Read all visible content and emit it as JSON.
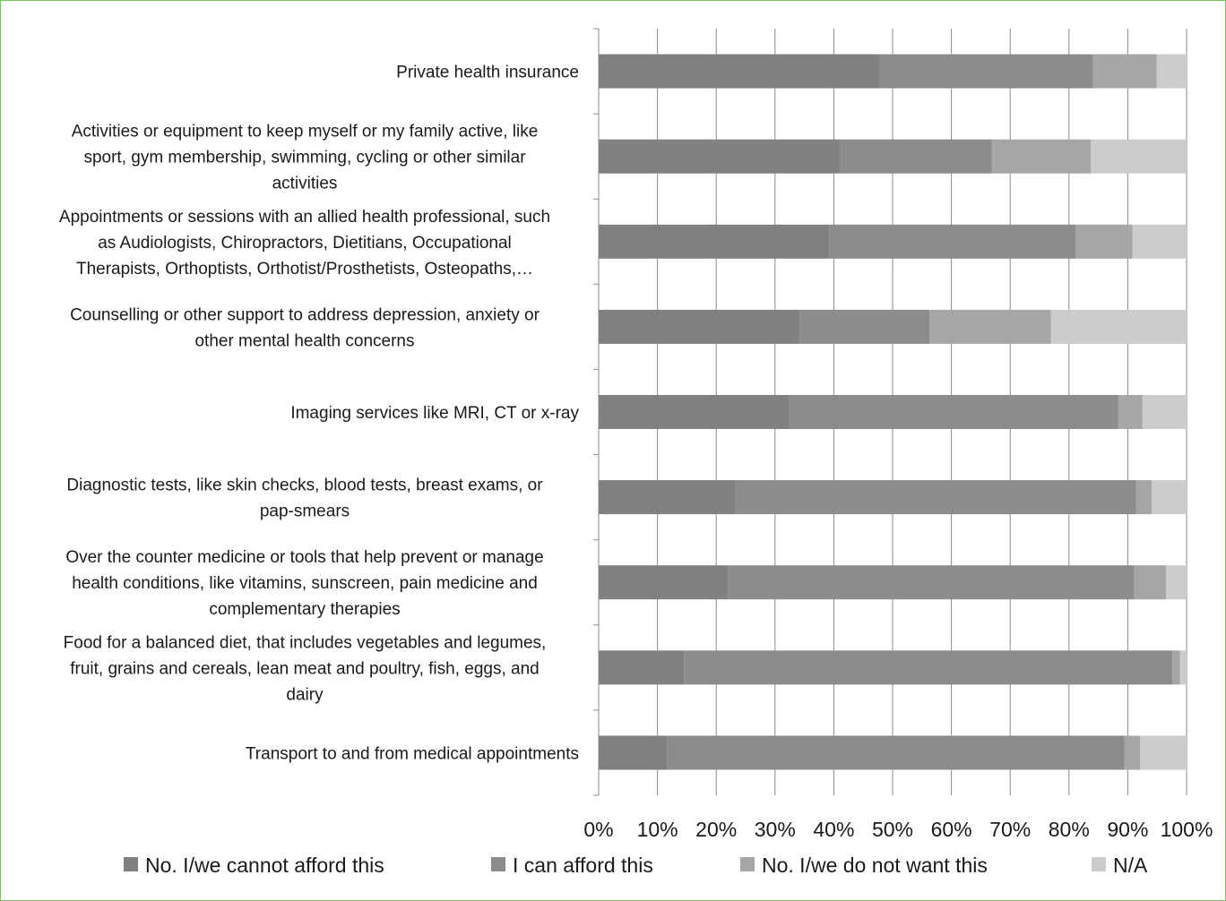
{
  "chart_data": {
    "type": "bar",
    "orientation": "horizontal",
    "stacked": "percent",
    "title": "",
    "xlabel": "",
    "ylabel": "",
    "xlim": [
      0,
      100
    ],
    "x_ticks": [
      "0%",
      "10%",
      "20%",
      "30%",
      "40%",
      "50%",
      "60%",
      "70%",
      "80%",
      "90%",
      "100%"
    ],
    "grid": "vertical",
    "legend_position": "bottom",
    "categories": [
      "Private health insurance",
      "Activities or equipment to keep myself or my family active, like sport, gym membership, swimming, cycling or other similar activities",
      "Appointments or sessions with an allied health professional, such as Audiologists, Chiropractors, Dietitians, Occupational Therapists, Orthoptists, Orthotist/Prosthetists, Osteopaths,…",
      "Counselling or other support to address depression, anxiety or other mental health concerns",
      "Imaging services like MRI, CT or x-ray",
      "Diagnostic tests, like skin checks, blood tests, breast exams, or pap-smears",
      "Over the counter medicine or tools that help prevent or manage health conditions, like vitamins, sunscreen, pain medicine and complementary therapies",
      "Food for a balanced diet, that includes vegetables and legumes, fruit, grains and cereals, lean meat and poultry, fish, eggs, and dairy",
      "Transport to and from medical appointments"
    ],
    "category_label_lines": [
      [
        "Private health insurance"
      ],
      [
        "Activities or equipment to keep myself or my family active, like",
        "sport, gym membership, swimming, cycling or other similar",
        "activities"
      ],
      [
        "Appointments or sessions with an allied health professional, such",
        "as Audiologists, Chiropractors, Dietitians, Occupational",
        "Therapists, Orthoptists, Orthotist/Prosthetists, Osteopaths,…"
      ],
      [
        "Counselling or other support to address depression, anxiety or",
        "other mental health concerns"
      ],
      [
        "Imaging services like MRI, CT or x-ray"
      ],
      [
        "Diagnostic tests, like skin checks, blood tests, breast exams, or",
        "pap-smears"
      ],
      [
        "Over the counter medicine or tools that help prevent or manage",
        "health conditions, like vitamins, sunscreen, pain medicine and",
        "complementary therapies"
      ],
      [
        "Food for a balanced diet, that includes vegetables and legumes,",
        "fruit, grains and cereals, lean meat and poultry, fish, eggs, and",
        "dairy"
      ],
      [
        "Transport to and from medical appointments"
      ]
    ],
    "series": [
      {
        "name": "No. I/we cannot afford this",
        "color": "#808080",
        "values": [
          47.8,
          41.0,
          39.2,
          34.2,
          32.4,
          23.3,
          22.0,
          14.5,
          11.6
        ]
      },
      {
        "name": "I can afford this",
        "color": "#8c8c8e",
        "values": [
          36.3,
          25.9,
          41.9,
          22.1,
          56.0,
          68.1,
          69.1,
          83.1,
          77.8
        ]
      },
      {
        "name": "No. I/we do not want this",
        "color": "#a6a6a6",
        "values": [
          10.8,
          16.8,
          9.7,
          20.6,
          4.1,
          2.7,
          5.4,
          1.3,
          2.7
        ]
      },
      {
        "name": "N/A",
        "color": "#cccccc",
        "values": [
          5.1,
          16.3,
          9.2,
          23.1,
          7.5,
          5.9,
          3.5,
          1.1,
          7.9
        ]
      }
    ]
  }
}
